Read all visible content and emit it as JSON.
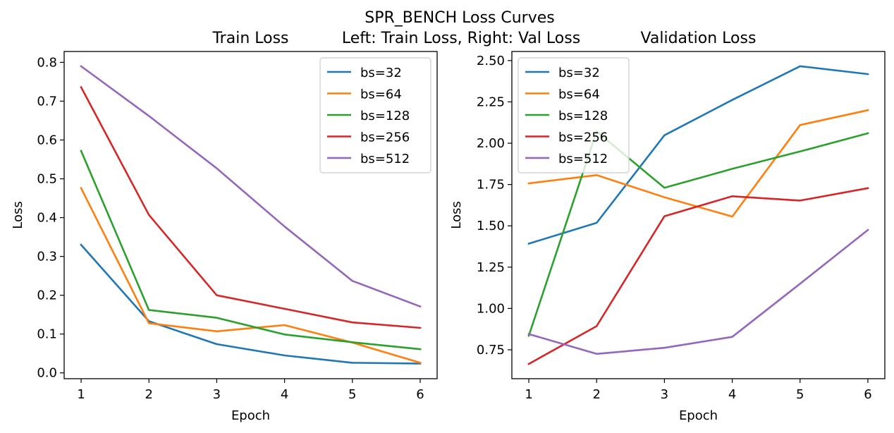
{
  "figure": {
    "suptitle": "SPR_BENCH Loss Curves",
    "subtitle": "Left: Train Loss, Right: Val Loss"
  },
  "chart_data": [
    {
      "type": "line",
      "title": "Train Loss",
      "xlabel": "Epoch",
      "ylabel": "Loss",
      "x": [
        1,
        2,
        3,
        4,
        5,
        6
      ],
      "xticks": [
        "1",
        "2",
        "3",
        "4",
        "5",
        "6"
      ],
      "yticks": [
        "0.0",
        "0.1",
        "0.2",
        "0.3",
        "0.4",
        "0.5",
        "0.6",
        "0.7",
        "0.8"
      ],
      "ytick_values": [
        0.0,
        0.1,
        0.2,
        0.3,
        0.4,
        0.5,
        0.6,
        0.7,
        0.8
      ],
      "xlim": [
        0.75,
        6.25
      ],
      "ylim": [
        -0.015,
        0.828
      ],
      "legend_position": "upper right",
      "grid": false,
      "series": [
        {
          "name": "bs=32",
          "color": "#1f77b4",
          "values": [
            0.33,
            0.133,
            0.074,
            0.045,
            0.026,
            0.024
          ]
        },
        {
          "name": "bs=64",
          "color": "#ff7f0e",
          "values": [
            0.476,
            0.128,
            0.107,
            0.123,
            0.078,
            0.026
          ]
        },
        {
          "name": "bs=128",
          "color": "#2ca02c",
          "values": [
            0.572,
            0.162,
            0.142,
            0.099,
            0.079,
            0.061
          ]
        },
        {
          "name": "bs=256",
          "color": "#d62728",
          "values": [
            0.736,
            0.407,
            0.2,
            0.165,
            0.13,
            0.116
          ]
        },
        {
          "name": "bs=512",
          "color": "#9467bd",
          "values": [
            0.79,
            0.662,
            0.527,
            0.377,
            0.237,
            0.171
          ]
        }
      ]
    },
    {
      "type": "line",
      "title": "Validation Loss",
      "xlabel": "Epoch",
      "ylabel": "Loss",
      "x": [
        1,
        2,
        3,
        4,
        5,
        6
      ],
      "xticks": [
        "1",
        "2",
        "3",
        "4",
        "5",
        "6"
      ],
      "yticks": [
        "0.75",
        "1.00",
        "1.25",
        "1.50",
        "1.75",
        "2.00",
        "2.25",
        "2.50"
      ],
      "ytick_values": [
        0.75,
        1.0,
        1.25,
        1.5,
        1.75,
        2.0,
        2.25,
        2.5
      ],
      "xlim": [
        0.75,
        6.25
      ],
      "ylim": [
        0.575,
        2.555
      ],
      "legend_position": "upper left",
      "grid": false,
      "series": [
        {
          "name": "bs=32",
          "color": "#1f77b4",
          "values": [
            1.392,
            1.518,
            2.048,
            2.262,
            2.466,
            2.418
          ]
        },
        {
          "name": "bs=64",
          "color": "#ff7f0e",
          "values": [
            1.757,
            1.807,
            1.673,
            1.556,
            2.11,
            2.2
          ]
        },
        {
          "name": "bs=128",
          "color": "#2ca02c",
          "values": [
            0.835,
            2.071,
            1.73,
            1.845,
            1.95,
            2.06
          ]
        },
        {
          "name": "bs=256",
          "color": "#d62728",
          "values": [
            0.664,
            0.893,
            1.558,
            1.679,
            1.653,
            1.728
          ]
        },
        {
          "name": "bs=512",
          "color": "#9467bd",
          "values": [
            0.845,
            0.725,
            0.762,
            0.828,
            1.15,
            1.475
          ]
        }
      ]
    }
  ]
}
